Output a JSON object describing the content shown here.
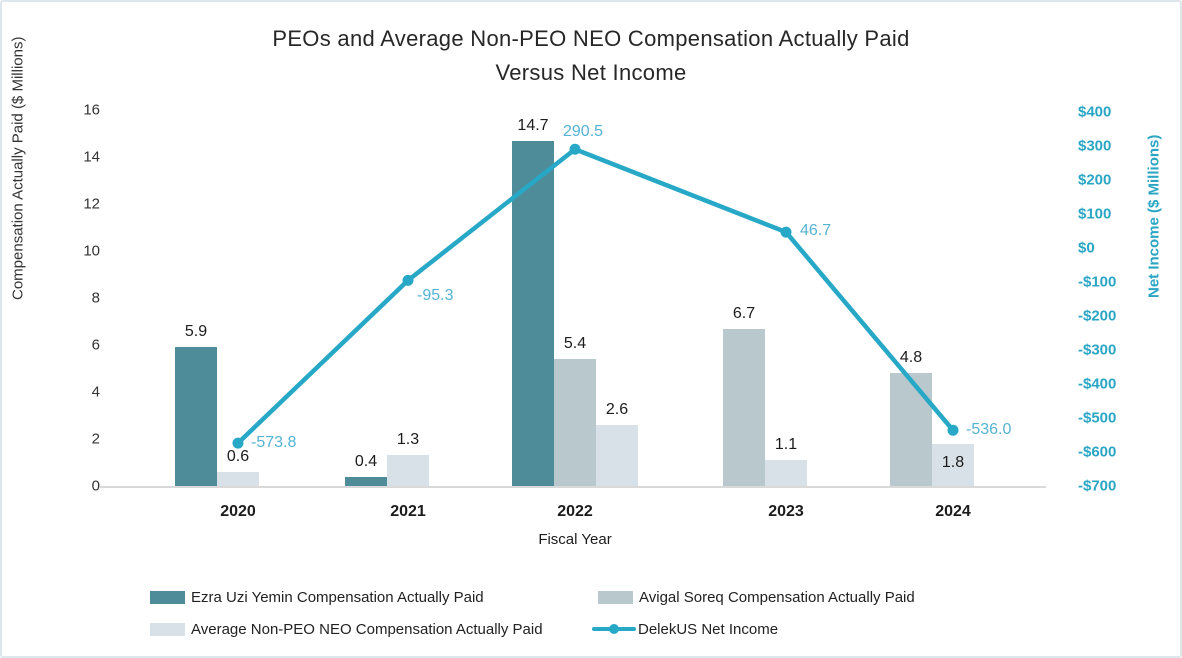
{
  "title": {
    "line1": "PEOs and Average Non-PEO NEO Compensation Actually Paid",
    "line2": "Versus Net Income"
  },
  "colors": {
    "ezra_bar": "#4f8c99",
    "avigal_bar": "#b8c8cd",
    "avg_bar": "#d8e1e7",
    "net_income_line": "#27a8c6",
    "point_label_text": "#54b3d3",
    "right_axis_text": "#2aa6c4",
    "axis_text": "#333333",
    "value_label_text": "#1c1c1c",
    "baseline": "#d9d9d9",
    "card_border": "#dde7eb"
  },
  "chart_data": {
    "type": "bar+line combo",
    "categories": [
      "2020",
      "2021",
      "2022",
      "2023",
      "2024"
    ],
    "series": [
      {
        "key": "ezra",
        "type": "bar",
        "color": "#4f8c99",
        "name": "Ezra Uzi Yemin Compensation Actually Paid",
        "values": [
          5.9,
          0.4,
          14.7,
          null,
          null
        ]
      },
      {
        "key": "avigal",
        "type": "bar",
        "color": "#b8c8cd",
        "name": "Avigal Soreq Compensation Actually Paid",
        "values": [
          null,
          null,
          5.4,
          6.7,
          4.8
        ]
      },
      {
        "key": "avg-non-peo",
        "type": "bar",
        "color": "#d8e1e7",
        "name": "Average Non-PEO NEO Compensation Actually Paid",
        "values": [
          0.6,
          1.3,
          2.6,
          1.1,
          1.8
        ]
      },
      {
        "key": "net-income",
        "type": "line",
        "color": "#27a8c6",
        "name": "DelekUS Net Income",
        "values": [
          -573.8,
          -95.3,
          290.5,
          46.7,
          -536.0
        ]
      }
    ],
    "xlabel": "Fiscal Year",
    "ylabel_left": "Compensation Actually Paid ($ Millions)",
    "ylabel_right": "Net Income ($ Millions)",
    "left_axis": {
      "min": 0,
      "max": 16,
      "ticks": [
        16,
        14,
        12,
        10,
        8,
        6,
        4,
        2,
        0
      ]
    },
    "right_axis": {
      "min": -700,
      "max": 400,
      "ticks": [
        "$400",
        "$300",
        "$200",
        "$100",
        "$0",
        "-$100",
        "-$200",
        "-$300",
        "-$400",
        "-$500",
        "-$600",
        "-$700"
      ]
    },
    "grid": false,
    "legend_position": "bottom"
  }
}
